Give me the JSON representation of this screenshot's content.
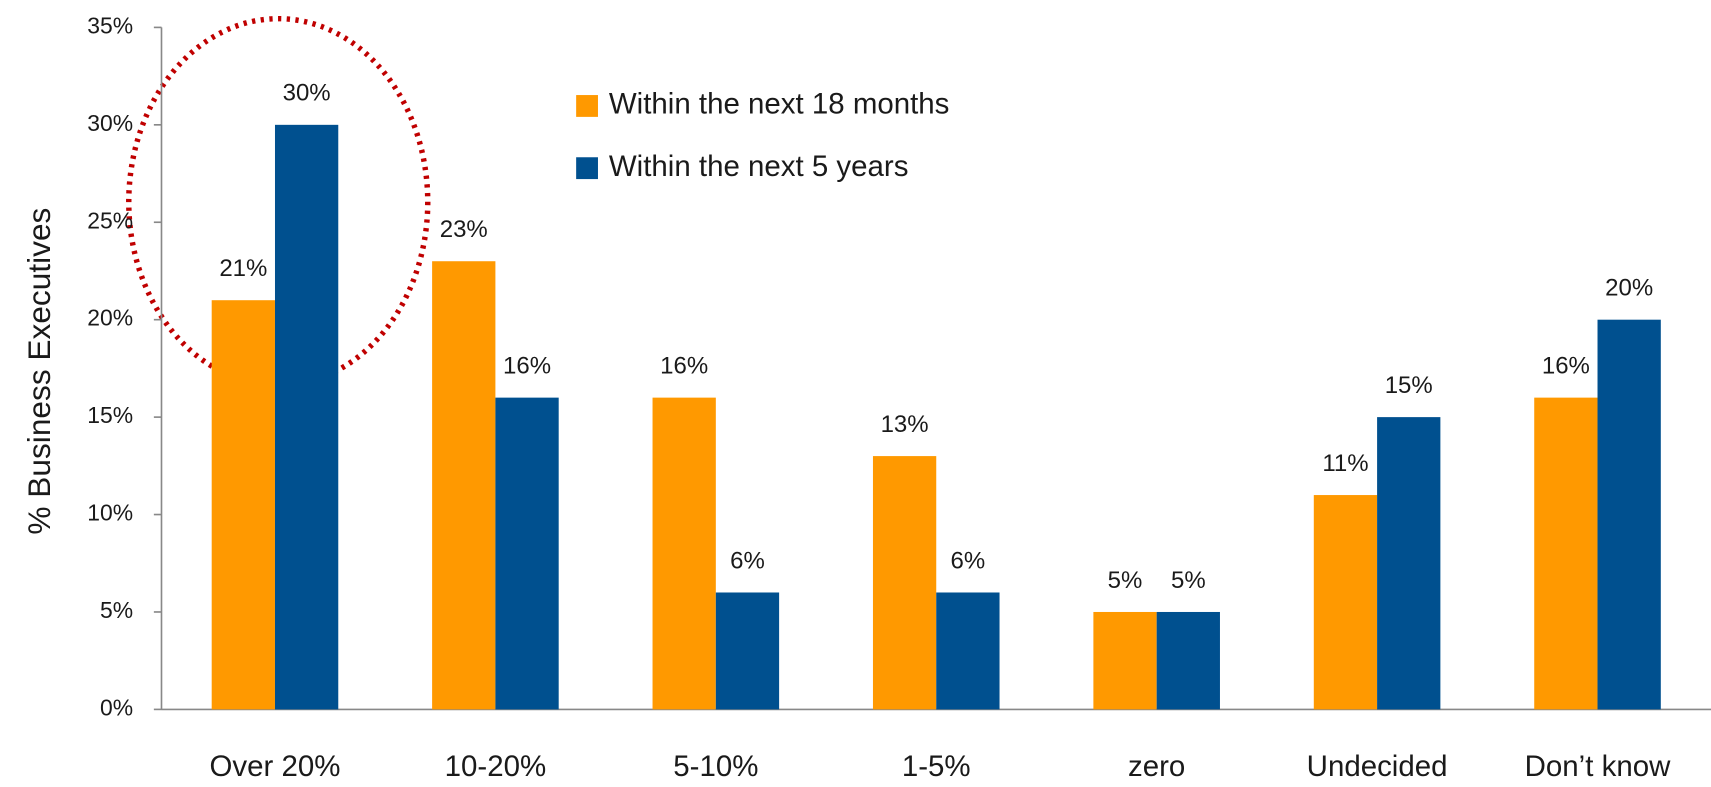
{
  "chart_data": {
    "type": "bar",
    "y_label": "% Business  Executives",
    "categories": [
      "Over 20%",
      "10-20%",
      "5-10%",
      "1-5%",
      "zero",
      "Undecided",
      "Don’t know"
    ],
    "series": [
      {
        "name": "Within the next 18 months",
        "color": "#ff9900",
        "values": [
          21,
          23,
          16,
          13,
          5,
          11,
          16
        ],
        "value_labels": [
          "21%",
          "23%",
          "16%",
          "13%",
          "5%",
          "11%",
          "16%"
        ]
      },
      {
        "name": "Within the next 5 years",
        "color": "#00508f",
        "values": [
          30,
          16,
          6,
          6,
          5,
          15,
          20
        ],
        "value_labels": [
          "30%",
          "16%",
          "6%",
          "6%",
          "5%",
          "15%",
          "20%"
        ]
      }
    ],
    "ylim": [
      0,
      35
    ],
    "yticks": [
      {
        "value": 0,
        "label": "0%"
      },
      {
        "value": 5,
        "label": "5%"
      },
      {
        "value": 10,
        "label": "10%"
      },
      {
        "value": 15,
        "label": "15%"
      },
      {
        "value": 20,
        "label": "20%"
      },
      {
        "value": 25,
        "label": "25%"
      },
      {
        "value": 30,
        "label": "30%"
      },
      {
        "value": 35,
        "label": "35%"
      }
    ],
    "legend": "top-center"
  }
}
